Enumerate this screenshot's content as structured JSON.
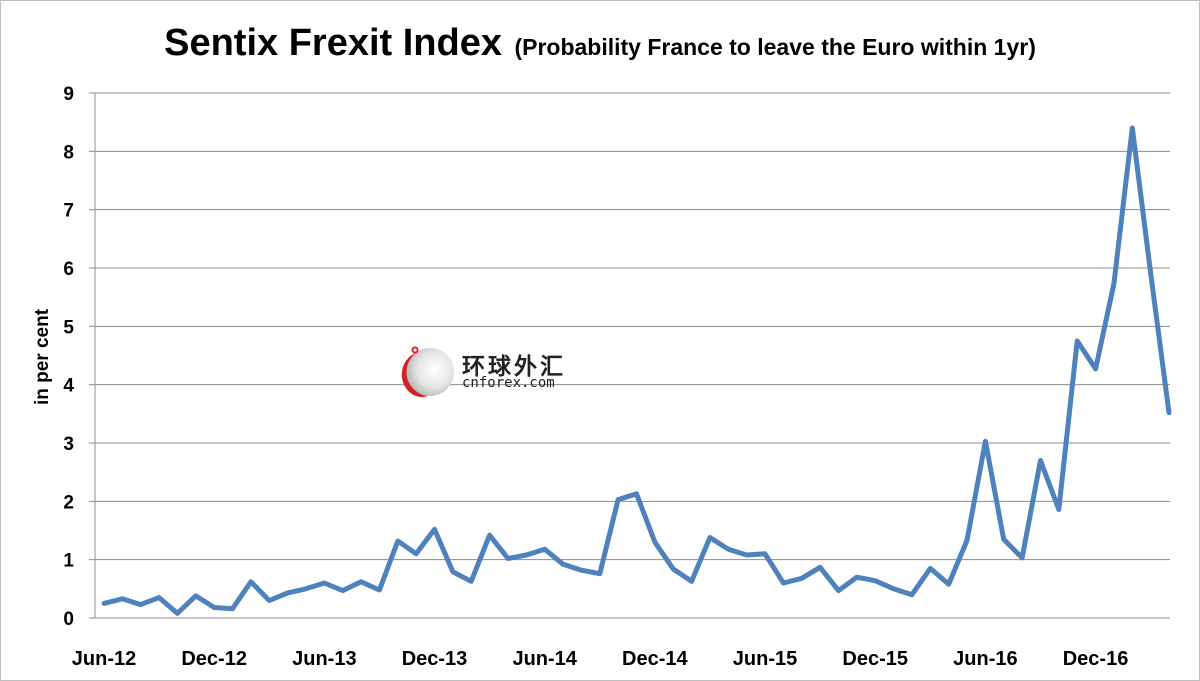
{
  "chart_data": {
    "type": "line",
    "title": "Sentix Frexit Index",
    "subtitle": "(Probability France to leave the Euro within 1yr)",
    "xlabel": "",
    "ylabel": "in per cent",
    "ylim": [
      0,
      9
    ],
    "yticks": [
      "0",
      "1",
      "2",
      "3",
      "4",
      "5",
      "6",
      "7",
      "8",
      "9"
    ],
    "xtick_labels": [
      "Jun-12",
      "Dec-12",
      "Jun-13",
      "Dec-13",
      "Jun-14",
      "Dec-14",
      "Jun-15",
      "Dec-15",
      "Jun-16",
      "Dec-16"
    ],
    "grid": true,
    "line_color": "#4f81bd",
    "series": [
      {
        "values": [
          0.25,
          0.33,
          0.23,
          0.35,
          0.08,
          0.38,
          0.18,
          0.16,
          0.62,
          0.3,
          0.43,
          0.5,
          0.6,
          0.47,
          0.62,
          0.48,
          1.32,
          1.1,
          1.52,
          0.79,
          0.63,
          1.42,
          1.02,
          1.08,
          1.18,
          0.92,
          0.82,
          0.76,
          2.03,
          2.13,
          1.3,
          0.84,
          0.63,
          1.38,
          1.18,
          1.08,
          1.1,
          0.6,
          0.68,
          0.87,
          0.47,
          0.7,
          0.64,
          0.5,
          0.4,
          0.85,
          0.58,
          1.33,
          3.03,
          1.35,
          1.03,
          2.7,
          1.86,
          4.75,
          4.27,
          5.73,
          8.4,
          5.92,
          3.52
        ]
      }
    ]
  },
  "watermark": {
    "chinese": "环球外汇",
    "latin": "cnforex.com"
  }
}
